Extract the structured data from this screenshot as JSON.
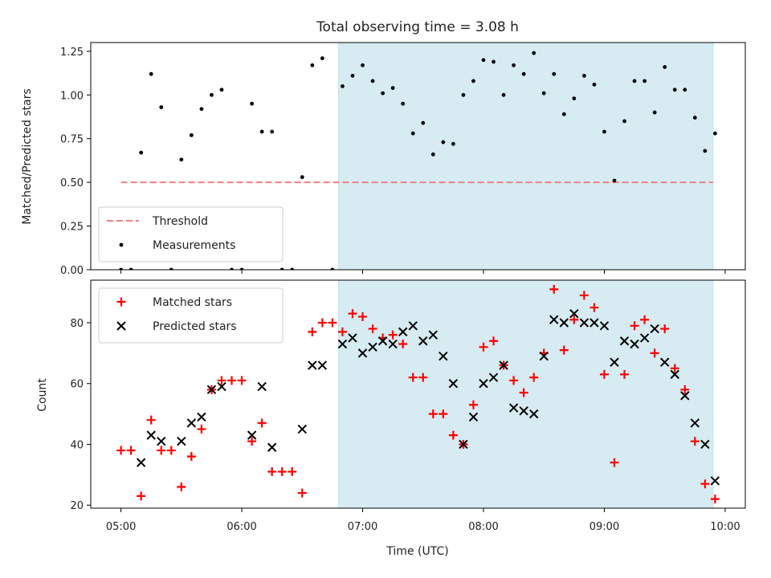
{
  "chart_data": [
    {
      "type": "scatter",
      "title": "Total observing time = 3.08 h",
      "xlabel": "",
      "ylabel": "Matched/Predicted stars",
      "xlim": [
        "04:45",
        "10:10"
      ],
      "ylim": [
        0,
        1.3
      ],
      "yticks": [
        "0.00",
        "0.25",
        "0.50",
        "0.75",
        "1.00",
        "1.25"
      ],
      "shaded_region": {
        "from": "06:48",
        "to": "09:54",
        "color": "#add8e6"
      },
      "threshold": {
        "name": "Threshold",
        "value": 0.5,
        "from": "05:00",
        "to": "09:54",
        "color": "#f08080",
        "style": "dashed"
      },
      "legend": {
        "position": "lower-left",
        "entries": [
          "Threshold",
          "Measurements"
        ]
      },
      "series": [
        {
          "name": "Measurements",
          "color": "#000000",
          "marker": "dot",
          "points": [
            [
              "05:00",
              0.0
            ],
            [
              "05:05",
              0.0
            ],
            [
              "05:10",
              0.67
            ],
            [
              "05:15",
              1.12
            ],
            [
              "05:20",
              0.93
            ],
            [
              "05:25",
              0.0
            ],
            [
              "05:30",
              0.63
            ],
            [
              "05:35",
              0.77
            ],
            [
              "05:40",
              0.92
            ],
            [
              "05:45",
              1.0
            ],
            [
              "05:50",
              1.03
            ],
            [
              "05:55",
              0.0
            ],
            [
              "06:00",
              0.0
            ],
            [
              "06:05",
              0.95
            ],
            [
              "06:10",
              0.79
            ],
            [
              "06:15",
              0.79
            ],
            [
              "06:20",
              0.0
            ],
            [
              "06:25",
              0.0
            ],
            [
              "06:30",
              0.53
            ],
            [
              "06:35",
              1.17
            ],
            [
              "06:40",
              1.21
            ],
            [
              "06:45",
              0.0
            ],
            [
              "06:50",
              1.05
            ],
            [
              "06:55",
              1.11
            ],
            [
              "07:00",
              1.17
            ],
            [
              "07:05",
              1.08
            ],
            [
              "07:10",
              1.01
            ],
            [
              "07:15",
              1.04
            ],
            [
              "07:20",
              0.95
            ],
            [
              "07:25",
              0.78
            ],
            [
              "07:30",
              0.84
            ],
            [
              "07:35",
              0.66
            ],
            [
              "07:40",
              0.73
            ],
            [
              "07:45",
              0.72
            ],
            [
              "07:50",
              1.0
            ],
            [
              "07:55",
              1.08
            ],
            [
              "08:00",
              1.2
            ],
            [
              "08:05",
              1.19
            ],
            [
              "08:10",
              1.0
            ],
            [
              "08:15",
              1.17
            ],
            [
              "08:20",
              1.12
            ],
            [
              "08:25",
              1.24
            ],
            [
              "08:30",
              1.01
            ],
            [
              "08:35",
              1.12
            ],
            [
              "08:40",
              0.89
            ],
            [
              "08:45",
              0.98
            ],
            [
              "08:50",
              1.11
            ],
            [
              "08:55",
              1.06
            ],
            [
              "09:00",
              0.79
            ],
            [
              "09:05",
              0.51
            ],
            [
              "09:10",
              0.85
            ],
            [
              "09:15",
              1.08
            ],
            [
              "09:20",
              1.08
            ],
            [
              "09:25",
              0.9
            ],
            [
              "09:30",
              1.16
            ],
            [
              "09:35",
              1.03
            ],
            [
              "09:40",
              1.03
            ],
            [
              "09:45",
              0.87
            ],
            [
              "09:50",
              0.68
            ],
            [
              "09:55",
              0.78
            ]
          ]
        }
      ]
    },
    {
      "type": "scatter",
      "title": "",
      "xlabel": "Time (UTC)",
      "ylabel": "Count",
      "xlim": [
        "04:45",
        "10:10"
      ],
      "ylim": [
        19,
        94
      ],
      "yticks": [
        "20",
        "40",
        "60",
        "80"
      ],
      "xticks": [
        "05:00",
        "06:00",
        "07:00",
        "08:00",
        "09:00",
        "10:00"
      ],
      "shaded_region": {
        "from": "06:48",
        "to": "09:54",
        "color": "#add8e6"
      },
      "legend": {
        "position": "top-left",
        "entries": [
          "Matched stars",
          "Predicted stars"
        ]
      },
      "series": [
        {
          "name": "Matched stars",
          "color": "#ff0000",
          "marker": "plus",
          "points": [
            [
              "05:00",
              38
            ],
            [
              "05:05",
              38
            ],
            [
              "05:10",
              23
            ],
            [
              "05:15",
              48
            ],
            [
              "05:20",
              38
            ],
            [
              "05:25",
              38
            ],
            [
              "05:30",
              26
            ],
            [
              "05:35",
              36
            ],
            [
              "05:40",
              45
            ],
            [
              "05:45",
              58
            ],
            [
              "05:50",
              61
            ],
            [
              "05:55",
              61
            ],
            [
              "06:00",
              61
            ],
            [
              "06:05",
              41
            ],
            [
              "06:10",
              47
            ],
            [
              "06:15",
              31
            ],
            [
              "06:20",
              31
            ],
            [
              "06:25",
              31
            ],
            [
              "06:30",
              24
            ],
            [
              "06:35",
              77
            ],
            [
              "06:40",
              80
            ],
            [
              "06:45",
              80
            ],
            [
              "06:50",
              77
            ],
            [
              "06:55",
              83
            ],
            [
              "07:00",
              82
            ],
            [
              "07:05",
              78
            ],
            [
              "07:10",
              75
            ],
            [
              "07:15",
              76
            ],
            [
              "07:20",
              73
            ],
            [
              "07:25",
              62
            ],
            [
              "07:30",
              62
            ],
            [
              "07:35",
              50
            ],
            [
              "07:40",
              50
            ],
            [
              "07:45",
              43
            ],
            [
              "07:50",
              40
            ],
            [
              "07:55",
              53
            ],
            [
              "08:00",
              72
            ],
            [
              "08:05",
              74
            ],
            [
              "08:10",
              66
            ],
            [
              "08:15",
              61
            ],
            [
              "08:20",
              57
            ],
            [
              "08:25",
              62
            ],
            [
              "08:30",
              70
            ],
            [
              "08:35",
              91
            ],
            [
              "08:40",
              71
            ],
            [
              "08:45",
              81
            ],
            [
              "08:50",
              89
            ],
            [
              "08:55",
              85
            ],
            [
              "09:00",
              63
            ],
            [
              "09:05",
              34
            ],
            [
              "09:10",
              63
            ],
            [
              "09:15",
              79
            ],
            [
              "09:20",
              81
            ],
            [
              "09:25",
              70
            ],
            [
              "09:30",
              78
            ],
            [
              "09:35",
              65
            ],
            [
              "09:40",
              58
            ],
            [
              "09:45",
              41
            ],
            [
              "09:50",
              27
            ],
            [
              "09:55",
              22
            ]
          ]
        },
        {
          "name": "Predicted stars",
          "color": "#000000",
          "marker": "x",
          "points": [
            [
              "05:10",
              34
            ],
            [
              "05:15",
              43
            ],
            [
              "05:20",
              41
            ],
            [
              "05:30",
              41
            ],
            [
              "05:35",
              47
            ],
            [
              "05:40",
              49
            ],
            [
              "05:45",
              58
            ],
            [
              "05:50",
              59
            ],
            [
              "06:05",
              43
            ],
            [
              "06:10",
              59
            ],
            [
              "06:15",
              39
            ],
            [
              "06:30",
              45
            ],
            [
              "06:35",
              66
            ],
            [
              "06:40",
              66
            ],
            [
              "06:50",
              73
            ],
            [
              "06:55",
              75
            ],
            [
              "07:00",
              70
            ],
            [
              "07:05",
              72
            ],
            [
              "07:10",
              74
            ],
            [
              "07:15",
              73
            ],
            [
              "07:20",
              77
            ],
            [
              "07:25",
              79
            ],
            [
              "07:30",
              74
            ],
            [
              "07:35",
              76
            ],
            [
              "07:40",
              69
            ],
            [
              "07:45",
              60
            ],
            [
              "07:50",
              40
            ],
            [
              "07:55",
              49
            ],
            [
              "08:00",
              60
            ],
            [
              "08:05",
              62
            ],
            [
              "08:10",
              66
            ],
            [
              "08:15",
              52
            ],
            [
              "08:20",
              51
            ],
            [
              "08:25",
              50
            ],
            [
              "08:30",
              69
            ],
            [
              "08:35",
              81
            ],
            [
              "08:40",
              80
            ],
            [
              "08:45",
              83
            ],
            [
              "08:50",
              80
            ],
            [
              "08:55",
              80
            ],
            [
              "09:00",
              79
            ],
            [
              "09:05",
              67
            ],
            [
              "09:10",
              74
            ],
            [
              "09:15",
              73
            ],
            [
              "09:20",
              75
            ],
            [
              "09:25",
              78
            ],
            [
              "09:30",
              67
            ],
            [
              "09:35",
              63
            ],
            [
              "09:40",
              56
            ],
            [
              "09:45",
              47
            ],
            [
              "09:50",
              40
            ],
            [
              "09:55",
              28
            ]
          ]
        }
      ]
    }
  ]
}
